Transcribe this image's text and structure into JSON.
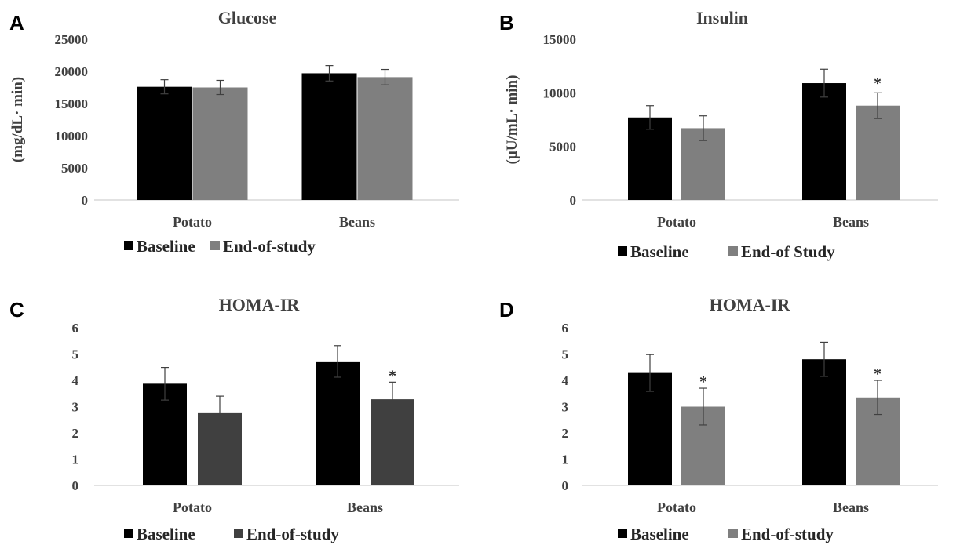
{
  "chart_data": [
    {
      "panel": "A",
      "type": "bar",
      "title": "Glucose",
      "ylabel": "(mg/dL· min)",
      "xlabel": "",
      "ylim": [
        0,
        25000
      ],
      "yticks": [
        "0",
        "5000",
        "10000",
        "15000",
        "20000",
        "25000"
      ],
      "categories": [
        "Potato",
        "Beans"
      ],
      "series": [
        {
          "name": "Baseline",
          "color": "#000000",
          "values": [
            17600,
            19700
          ],
          "errors": [
            1100,
            1200
          ],
          "stars": [
            false,
            false
          ]
        },
        {
          "name": "End-of-study",
          "color": "#7f7f7f",
          "values": [
            17500,
            19100
          ],
          "errors": [
            1100,
            1200
          ],
          "stars": [
            false,
            false
          ]
        }
      ],
      "legend": "bottom-left",
      "grid": false
    },
    {
      "panel": "B",
      "type": "bar",
      "title": "Insulin",
      "ylabel": "(µU/mL· min)",
      "xlabel": "",
      "ylim": [
        0,
        15000
      ],
      "yticks": [
        "0",
        "5000",
        "10000",
        "15000"
      ],
      "categories": [
        "Potato",
        "Beans"
      ],
      "series": [
        {
          "name": "Baseline",
          "color": "#000000",
          "values": [
            7700,
            10900
          ],
          "errors": [
            1100,
            1300
          ],
          "stars": [
            false,
            false
          ]
        },
        {
          "name": "End-of Study",
          "color": "#7f7f7f",
          "values": [
            6700,
            8800
          ],
          "errors": [
            1150,
            1200
          ],
          "stars": [
            false,
            true
          ]
        }
      ],
      "legend": "bottom-center",
      "grid": false
    },
    {
      "panel": "C",
      "type": "bar",
      "title": "HOMA-IR",
      "ylabel": "",
      "xlabel": "",
      "ylim": [
        0,
        6
      ],
      "yticks": [
        "0",
        "1",
        "2",
        "3",
        "4",
        "5",
        "6"
      ],
      "categories": [
        "Potato",
        "Beans"
      ],
      "series": [
        {
          "name": "Baseline",
          "color": "#000000",
          "values": [
            3.87,
            4.72
          ],
          "errors": [
            0.62,
            0.6
          ],
          "stars": [
            false,
            false
          ]
        },
        {
          "name": "End-of-study",
          "color": "#404040",
          "values": [
            2.75,
            3.28
          ],
          "errors": [
            0.65,
            0.65
          ],
          "stars": [
            false,
            true
          ]
        }
      ],
      "legend": "bottom-left",
      "grid": false
    },
    {
      "panel": "D",
      "type": "bar",
      "title": "HOMA-IR",
      "ylabel": "",
      "xlabel": "",
      "ylim": [
        0,
        6
      ],
      "yticks": [
        "0",
        "1",
        "2",
        "3",
        "4",
        "5",
        "6"
      ],
      "categories": [
        "Potato",
        "Beans"
      ],
      "series": [
        {
          "name": "Baseline",
          "color": "#000000",
          "values": [
            4.28,
            4.8
          ],
          "errors": [
            0.7,
            0.65
          ],
          "stars": [
            false,
            false
          ]
        },
        {
          "name": "End-of-study",
          "color": "#7f7f7f",
          "values": [
            3.0,
            3.35
          ],
          "errors": [
            0.7,
            0.65
          ],
          "stars": [
            true,
            true
          ]
        }
      ],
      "legend": "bottom-left",
      "grid": false
    }
  ]
}
